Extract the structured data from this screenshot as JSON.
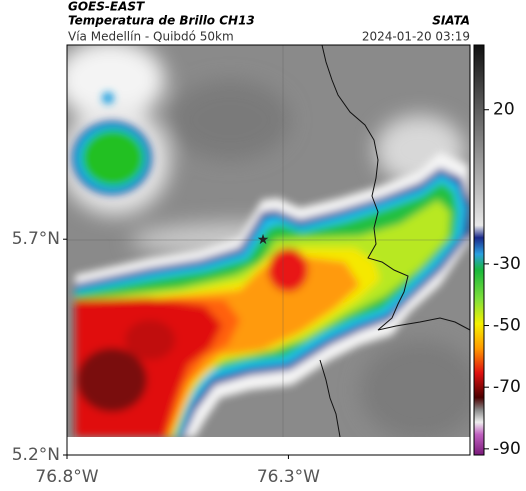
{
  "header": {
    "source": "GOES-EAST",
    "title": "Temperatura de Brillo CH13",
    "brand": "SIATA",
    "subtitle": "Vía Medellín - Quibdó 50km",
    "datetime": "2024-01-20 03:19"
  },
  "map": {
    "xlim": [
      -76.8,
      -75.89
    ],
    "ylim": [
      5.2,
      6.15
    ],
    "xticks": [
      {
        "value": -76.8,
        "label": "76.8°W"
      },
      {
        "value": -76.3,
        "label": "76.3°W"
      }
    ],
    "yticks": [
      {
        "value": 5.2,
        "label": "5.2°N"
      },
      {
        "value": 5.7,
        "label": "5.7°N"
      }
    ]
  },
  "colorbar": {
    "lim": [
      -92,
      41
    ],
    "ticks": [
      20,
      -30,
      -50,
      -70,
      -90
    ]
  }
}
